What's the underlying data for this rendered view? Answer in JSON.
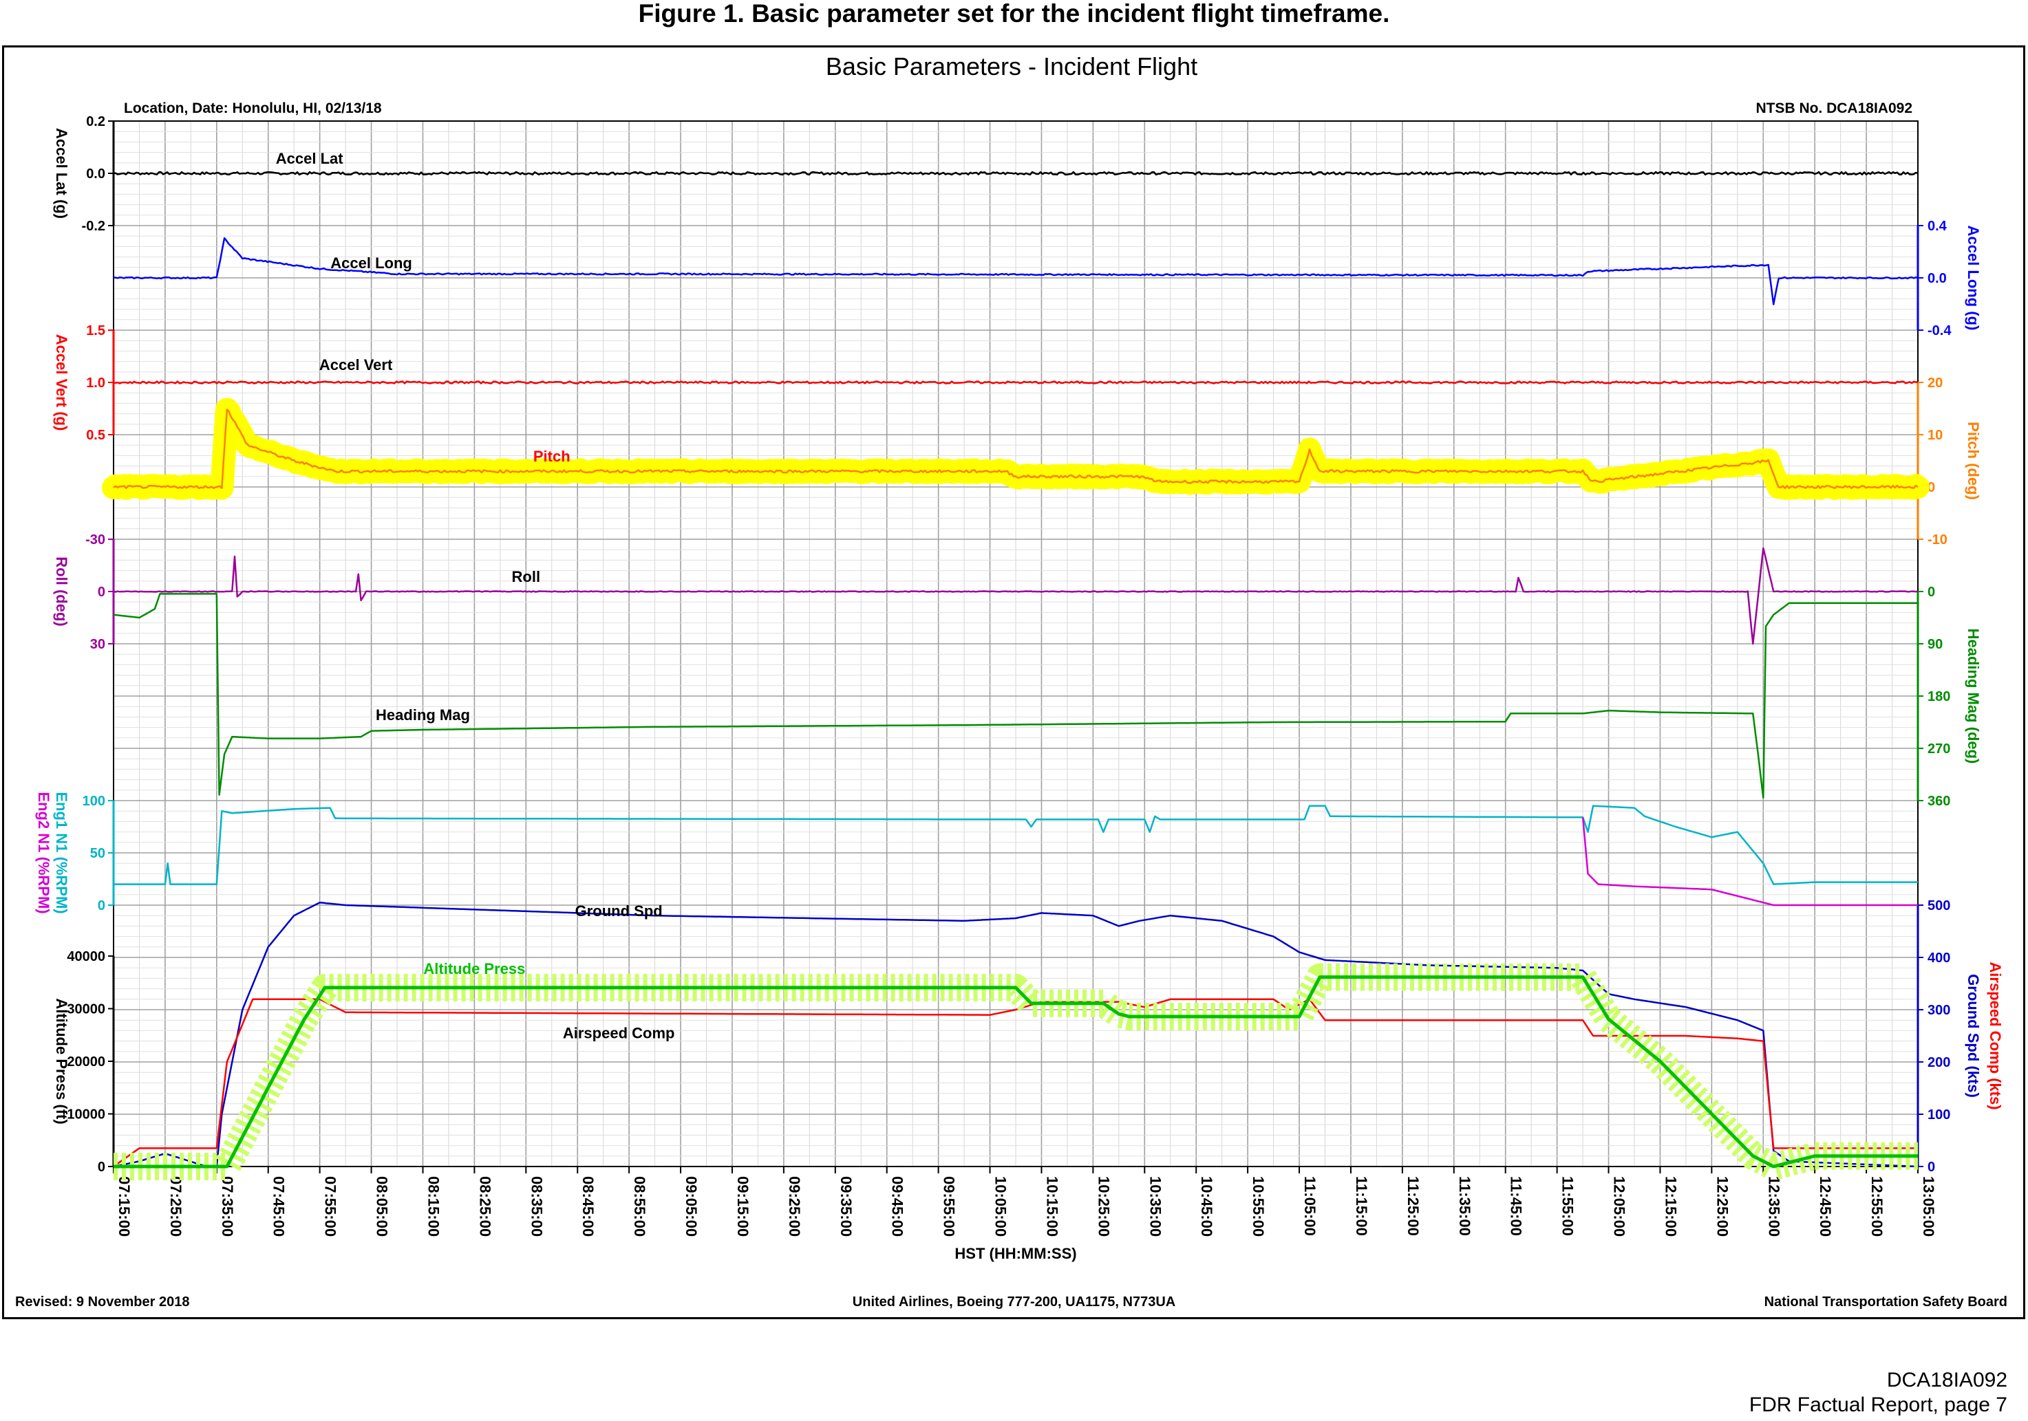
{
  "figure_caption": "Figure 1. Basic parameter set for the incident flight timeframe.",
  "chart_data": {
    "type": "line",
    "title": "Basic Parameters - Incident Flight",
    "header_left": "Location, Date: Honolulu, HI, 02/13/18",
    "header_right": "NTSB No. DCA18IA092",
    "footer_left": "Revised: 9 November 2018",
    "footer_center": "United Airlines, Boeing 777-200, UA1175, N773UA",
    "footer_right": "National Transportation Safety Board",
    "xlabel": "HST (HH:MM:SS)",
    "x_range": [
      "07:15:00",
      "13:05:00"
    ],
    "x_ticks": [
      "07:15:00",
      "07:25:00",
      "07:35:00",
      "07:45:00",
      "07:55:00",
      "08:05:00",
      "08:15:00",
      "08:25:00",
      "08:35:00",
      "08:45:00",
      "08:55:00",
      "09:05:00",
      "09:15:00",
      "09:25:00",
      "09:35:00",
      "09:45:00",
      "09:55:00",
      "10:05:00",
      "10:15:00",
      "10:25:00",
      "10:35:00",
      "10:45:00",
      "10:55:00",
      "11:05:00",
      "11:15:00",
      "11:25:00",
      "11:35:00",
      "11:45:00",
      "11:55:00",
      "12:05:00",
      "12:15:00",
      "12:25:00",
      "12:35:00",
      "12:45:00",
      "12:55:00",
      "13:05:00"
    ],
    "grid": true,
    "colors": {
      "accel_lat": "#000000",
      "accel_long": "#0000ff",
      "accel_vert": "#ff0000",
      "pitch": "#ff7f00",
      "pitch_highlight": "#ffff00",
      "roll": "#9b009b",
      "heading": "#008c00",
      "eng1": "#00b4c8",
      "eng2": "#d400d4",
      "ground_spd": "#0000c8",
      "airspeed": "#ff0000",
      "altitude": "#00c000",
      "altitude_highlight": "#ccff66"
    },
    "axes": [
      {
        "id": "accel_lat",
        "label": "Accel Lat (g)",
        "side": "left",
        "range": [
          -0.2,
          0.2
        ],
        "ticks": [
          "0.2",
          "0.0",
          "-0.2"
        ]
      },
      {
        "id": "accel_long",
        "label": "Accel Long (g)",
        "side": "right",
        "range": [
          -0.4,
          0.4
        ],
        "ticks": [
          "0.4",
          "0.0",
          "-0.4"
        ]
      },
      {
        "id": "accel_vert",
        "label": "Accel Vert (g)",
        "side": "left",
        "range": [
          0.5,
          1.5
        ],
        "ticks": [
          "1.5",
          "1.0",
          "0.5"
        ]
      },
      {
        "id": "pitch",
        "label": "Pitch (deg)",
        "side": "right",
        "range": [
          -10,
          20
        ],
        "ticks": [
          "20",
          "10",
          "0",
          "-10"
        ]
      },
      {
        "id": "roll",
        "label": "Roll (deg)",
        "side": "left",
        "range": [
          -30,
          30
        ],
        "ticks": [
          "-30",
          "0",
          "30"
        ]
      },
      {
        "id": "heading",
        "label": "Heading Mag (deg)",
        "side": "right",
        "range": [
          0,
          360
        ],
        "ticks": [
          "0",
          "90",
          "180",
          "270",
          "360"
        ]
      },
      {
        "id": "n1",
        "label": "Eng1 N1 (%RPM)",
        "label2": "Eng2 N1 (%RPM)",
        "side": "left",
        "range": [
          0,
          100
        ],
        "ticks": [
          "100",
          "50",
          "0"
        ]
      },
      {
        "id": "ground_spd",
        "label": "Ground Spd (kts)",
        "label2": "Airspeed Comp (kts)",
        "side": "right",
        "range": [
          0,
          500
        ],
        "ticks": [
          "500",
          "400",
          "300",
          "200",
          "100",
          "0"
        ]
      },
      {
        "id": "altitude",
        "label": "Altitude Press (ft)",
        "side": "left",
        "range": [
          0,
          40000
        ],
        "ticks": [
          "40000",
          "30000",
          "20000",
          "10000",
          "0"
        ]
      }
    ],
    "series": [
      {
        "name": "Accel Lat",
        "axis": "accel_lat",
        "noise": 0.01,
        "points": [
          [
            "07:15:00",
            0.0
          ],
          [
            "13:05:00",
            0.0
          ]
        ]
      },
      {
        "name": "Accel Long",
        "axis": "accel_long",
        "noise": 0.01,
        "points": [
          [
            "07:15:00",
            0.0
          ],
          [
            "07:35:00",
            0.0
          ],
          [
            "07:36:30",
            0.3
          ],
          [
            "07:40:00",
            0.15
          ],
          [
            "07:55:00",
            0.07
          ],
          [
            "08:10:00",
            0.03
          ],
          [
            "09:00:00",
            0.03
          ],
          [
            "12:00:00",
            0.02
          ],
          [
            "12:01:00",
            0.05
          ],
          [
            "12:36:00",
            0.1
          ],
          [
            "12:37:00",
            -0.2
          ],
          [
            "12:38:00",
            0.0
          ],
          [
            "13:05:00",
            0.0
          ]
        ]
      },
      {
        "name": "Accel Vert",
        "axis": "accel_vert",
        "noise": 0.02,
        "points": [
          [
            "07:15:00",
            1.0
          ],
          [
            "13:05:00",
            1.0
          ]
        ]
      },
      {
        "name": "Pitch",
        "axis": "pitch",
        "noise": 0.5,
        "points": [
          [
            "07:15:00",
            0.0
          ],
          [
            "07:36:00",
            0.0
          ],
          [
            "07:37:00",
            15.0
          ],
          [
            "07:41:00",
            8.0
          ],
          [
            "07:50:00",
            5.0
          ],
          [
            "07:58:00",
            3.0
          ],
          [
            "10:08:00",
            3.0
          ],
          [
            "10:10:00",
            2.0
          ],
          [
            "10:34:00",
            2.0
          ],
          [
            "10:38:00",
            1.0
          ],
          [
            "11:05:00",
            1.0
          ],
          [
            "11:07:00",
            7.0
          ],
          [
            "11:09:00",
            3.0
          ],
          [
            "12:00:00",
            3.0
          ],
          [
            "12:02:00",
            1.0
          ],
          [
            "12:36:00",
            5.0
          ],
          [
            "12:38:00",
            0.0
          ],
          [
            "13:05:00",
            0.0
          ]
        ]
      },
      {
        "name": "Roll",
        "axis": "roll",
        "noise": 0.4,
        "points": [
          [
            "07:15:00",
            0.0
          ],
          [
            "07:38:00",
            0.0
          ],
          [
            "07:38:30",
            -20.0
          ],
          [
            "07:39:00",
            3.0
          ],
          [
            "07:40:00",
            0.0
          ],
          [
            "08:02:00",
            0.0
          ],
          [
            "08:02:30",
            -10.0
          ],
          [
            "08:03:00",
            5.0
          ],
          [
            "08:04:00",
            0.0
          ],
          [
            "11:47:00",
            0.0
          ],
          [
            "11:47:30",
            -8.0
          ],
          [
            "11:48:30",
            0.0
          ],
          [
            "12:32:00",
            0.0
          ],
          [
            "12:33:00",
            30.0
          ],
          [
            "12:35:00",
            -25.0
          ],
          [
            "12:37:00",
            0.0
          ],
          [
            "13:05:00",
            0.0
          ]
        ]
      },
      {
        "name": "Heading Mag",
        "axis": "heading",
        "points": [
          [
            "07:15:00",
            40
          ],
          [
            "07:20:00",
            45
          ],
          [
            "07:23:00",
            30
          ],
          [
            "07:24:00",
            4
          ],
          [
            "07:35:00",
            4
          ],
          [
            "07:35:30",
            350
          ],
          [
            "07:36:30",
            280
          ],
          [
            "07:38:00",
            250
          ],
          [
            "07:45:00",
            253
          ],
          [
            "07:55:00",
            253
          ],
          [
            "08:03:00",
            250
          ],
          [
            "08:05:00",
            240
          ],
          [
            "08:15:00",
            238
          ],
          [
            "09:00:00",
            233
          ],
          [
            "10:00:00",
            230
          ],
          [
            "11:00:00",
            225
          ],
          [
            "11:45:00",
            224
          ],
          [
            "11:46:00",
            210
          ],
          [
            "12:00:00",
            210
          ],
          [
            "12:05:00",
            205
          ],
          [
            "12:15:00",
            208
          ],
          [
            "12:33:00",
            210
          ],
          [
            "12:34:00",
            280
          ],
          [
            "12:35:00",
            355
          ],
          [
            "12:35:30",
            60
          ],
          [
            "12:37:00",
            40
          ],
          [
            "12:40:00",
            20
          ],
          [
            "12:50:00",
            20
          ],
          [
            "13:05:00",
            20
          ]
        ]
      },
      {
        "name": "Eng1 N1",
        "axis": "n1",
        "points": [
          [
            "07:15:00",
            20
          ],
          [
            "07:25:00",
            20
          ],
          [
            "07:25:30",
            40
          ],
          [
            "07:26:00",
            20
          ],
          [
            "07:35:00",
            20
          ],
          [
            "07:36:00",
            90
          ],
          [
            "07:38:00",
            88
          ],
          [
            "07:50:00",
            92
          ],
          [
            "07:57:00",
            93
          ],
          [
            "07:58:00",
            83
          ],
          [
            "10:12:00",
            82
          ],
          [
            "10:13:00",
            75
          ],
          [
            "10:14:00",
            82
          ],
          [
            "10:26:00",
            82
          ],
          [
            "10:27:00",
            70
          ],
          [
            "10:28:00",
            82
          ],
          [
            "10:35:00",
            82
          ],
          [
            "10:36:00",
            70
          ],
          [
            "10:37:00",
            85
          ],
          [
            "10:38:00",
            82
          ],
          [
            "11:06:00",
            82
          ],
          [
            "11:07:00",
            95
          ],
          [
            "11:10:00",
            95
          ],
          [
            "11:11:00",
            85
          ],
          [
            "12:00:00",
            84
          ],
          [
            "12:01:00",
            70
          ],
          [
            "12:02:00",
            95
          ],
          [
            "12:10:00",
            93
          ],
          [
            "12:12:00",
            85
          ],
          [
            "12:18:00",
            75
          ],
          [
            "12:25:00",
            65
          ],
          [
            "12:30:00",
            70
          ],
          [
            "12:35:00",
            40
          ],
          [
            "12:37:00",
            20
          ],
          [
            "12:45:00",
            22
          ],
          [
            "13:05:00",
            22
          ]
        ]
      },
      {
        "name": "Eng2 N1",
        "axis": "n1",
        "points": [
          [
            "12:00:00",
            84
          ],
          [
            "12:01:00",
            30
          ],
          [
            "12:03:00",
            20
          ],
          [
            "12:10:00",
            18
          ],
          [
            "12:15:00",
            17
          ],
          [
            "12:25:00",
            15
          ],
          [
            "12:37:00",
            0
          ],
          [
            "13:05:00",
            0
          ]
        ]
      },
      {
        "name": "Ground Spd",
        "axis": "ground_spd",
        "points": [
          [
            "07:15:00",
            0
          ],
          [
            "07:20:00",
            10
          ],
          [
            "07:25:00",
            25
          ],
          [
            "07:33:00",
            0
          ],
          [
            "07:35:00",
            0
          ],
          [
            "07:36:00",
            100
          ],
          [
            "07:40:00",
            300
          ],
          [
            "07:45:00",
            420
          ],
          [
            "07:50:00",
            480
          ],
          [
            "07:55:00",
            505
          ],
          [
            "08:00:00",
            500
          ],
          [
            "08:30:00",
            490
          ],
          [
            "09:00:00",
            480
          ],
          [
            "09:30:00",
            475
          ],
          [
            "10:00:00",
            470
          ],
          [
            "10:10:00",
            475
          ],
          [
            "10:15:00",
            485
          ],
          [
            "10:25:00",
            480
          ],
          [
            "10:30:00",
            460
          ],
          [
            "10:34:00",
            470
          ],
          [
            "10:40:00",
            480
          ],
          [
            "10:50:00",
            470
          ],
          [
            "11:00:00",
            440
          ],
          [
            "11:05:00",
            410
          ],
          [
            "11:10:00",
            395
          ],
          [
            "11:30:00",
            385
          ],
          [
            "11:55:00",
            380
          ],
          [
            "12:00:00",
            375
          ],
          [
            "12:05:00",
            330
          ],
          [
            "12:10:00",
            320
          ],
          [
            "12:20:00",
            305
          ],
          [
            "12:30:00",
            280
          ],
          [
            "12:35:00",
            260
          ],
          [
            "12:37:00",
            30
          ],
          [
            "12:40:00",
            10
          ],
          [
            "13:05:00",
            0
          ]
        ]
      },
      {
        "name": "Airspeed Comp",
        "axis": "ground_spd",
        "points": [
          [
            "07:15:00",
            0
          ],
          [
            "07:20:00",
            35
          ],
          [
            "07:35:00",
            35
          ],
          [
            "07:37:00",
            200
          ],
          [
            "07:42:00",
            320
          ],
          [
            "07:55:00",
            320
          ],
          [
            "08:00:00",
            295
          ],
          [
            "10:05:00",
            290
          ],
          [
            "10:10:00",
            300
          ],
          [
            "10:15:00",
            315
          ],
          [
            "10:30:00",
            315
          ],
          [
            "10:35:00",
            305
          ],
          [
            "10:40:00",
            320
          ],
          [
            "11:00:00",
            320
          ],
          [
            "11:03:00",
            300
          ],
          [
            "11:07:00",
            320
          ],
          [
            "11:10:00",
            280
          ],
          [
            "11:55:00",
            280
          ],
          [
            "12:00:00",
            280
          ],
          [
            "12:02:00",
            250
          ],
          [
            "12:20:00",
            250
          ],
          [
            "12:30:00",
            245
          ],
          [
            "12:35:00",
            240
          ],
          [
            "12:37:00",
            35
          ],
          [
            "13:05:00",
            35
          ]
        ]
      },
      {
        "name": "Altitude Press",
        "axis": "altitude",
        "points": [
          [
            "07:15:00",
            0
          ],
          [
            "07:37:00",
            0
          ],
          [
            "07:45:00",
            15000
          ],
          [
            "07:52:00",
            28000
          ],
          [
            "07:56:00",
            34000
          ],
          [
            "10:10:00",
            34000
          ],
          [
            "10:13:00",
            31000
          ],
          [
            "10:27:00",
            31000
          ],
          [
            "10:30:00",
            29000
          ],
          [
            "10:32:00",
            28500
          ],
          [
            "10:38:00",
            28500
          ],
          [
            "11:05:00",
            28500
          ],
          [
            "11:09:00",
            36000
          ],
          [
            "12:00:00",
            36000
          ],
          [
            "12:05:00",
            28000
          ],
          [
            "12:15:00",
            20000
          ],
          [
            "12:25:00",
            10000
          ],
          [
            "12:33:00",
            2000
          ],
          [
            "12:37:00",
            0
          ],
          [
            "12:45:00",
            2000
          ],
          [
            "13:05:00",
            2000
          ]
        ]
      }
    ],
    "labels": [
      {
        "text": "Accel Lat",
        "series": "Accel Lat"
      },
      {
        "text": "Accel Long",
        "series": "Accel Long"
      },
      {
        "text": "Accel Vert",
        "series": "Accel Vert"
      },
      {
        "text": "Pitch",
        "series": "Pitch"
      },
      {
        "text": "Roll",
        "series": "Roll"
      },
      {
        "text": "Heading Mag",
        "series": "Heading Mag"
      },
      {
        "text": "Ground Spd",
        "series": "Ground Spd"
      },
      {
        "text": "Altitude Press",
        "series": "Altitude Press"
      },
      {
        "text": "Airspeed Comp",
        "series": "Airspeed Comp"
      }
    ]
  },
  "page_info": {
    "doc_id": "DCA18IA092",
    "page": "FDR Factual Report, page 7"
  }
}
